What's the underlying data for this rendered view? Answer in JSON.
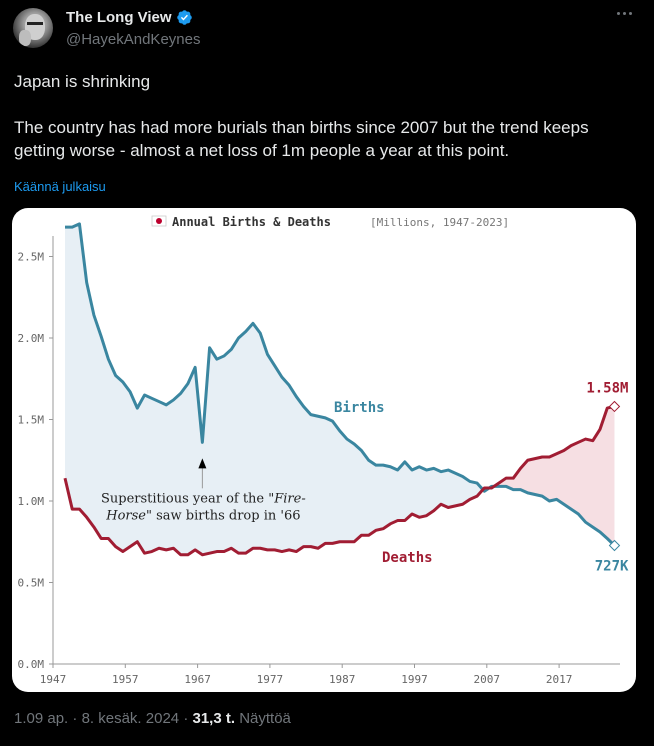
{
  "tweet": {
    "author": {
      "display_name": "The Long View",
      "handle": "@HayekAndKeynes",
      "verified": true,
      "avatar_icon": "avatar-photo"
    },
    "more_icon": "more-horizontal-icon",
    "text": {
      "line1": "Japan is shrinking",
      "line2": "The country has had more burials than births since 2007 but the trend keeps getting worse - almost a net loss of 1m people a year at this point."
    },
    "translate_label": "Käännä julkaisu",
    "footer": {
      "time": "1.09 ap.",
      "sep1": "·",
      "date": "8. kesäk. 2024",
      "sep2": "·",
      "views_count": "31,3 t.",
      "views_label": "Näyttöä"
    }
  },
  "colors": {
    "births": "#3a86a0",
    "deaths": "#a11d33",
    "births_fill": "#e7eff5",
    "deaths_fill": "#f6dfe3",
    "accent": "#1d9bf0"
  },
  "chart_data": {
    "type": "line",
    "title": "Annual Births & Deaths",
    "subtitle": "[Millions, 1947-2023]",
    "title_icon": "japan-flag-icon",
    "xlabel": "",
    "ylabel": "",
    "xlim": [
      1947,
      2023
    ],
    "ylim": [
      0,
      2.7
    ],
    "x_ticks": [
      "1947",
      "1957",
      "1967",
      "1977",
      "1987",
      "1997",
      "2007",
      "2017"
    ],
    "y_ticks": [
      "0.0M",
      "0.5M",
      "1.0M",
      "1.5M",
      "2.0M",
      "2.5M"
    ],
    "y_tick_values": [
      0,
      0.5,
      1.0,
      1.5,
      2.0,
      2.5
    ],
    "x": [
      1947,
      1948,
      1949,
      1950,
      1951,
      1952,
      1953,
      1954,
      1955,
      1956,
      1957,
      1958,
      1959,
      1960,
      1961,
      1962,
      1963,
      1964,
      1965,
      1966,
      1967,
      1968,
      1969,
      1970,
      1971,
      1972,
      1973,
      1974,
      1975,
      1976,
      1977,
      1978,
      1979,
      1980,
      1981,
      1982,
      1983,
      1984,
      1985,
      1986,
      1987,
      1988,
      1989,
      1990,
      1991,
      1992,
      1993,
      1994,
      1995,
      1996,
      1997,
      1998,
      1999,
      2000,
      2001,
      2002,
      2003,
      2004,
      2005,
      2006,
      2007,
      2008,
      2009,
      2010,
      2011,
      2012,
      2013,
      2014,
      2015,
      2016,
      2017,
      2018,
      2019,
      2020,
      2021,
      2022,
      2023
    ],
    "series": [
      {
        "name": "Births",
        "values": [
          2.68,
          2.68,
          2.7,
          2.34,
          2.14,
          2.01,
          1.87,
          1.77,
          1.73,
          1.67,
          1.57,
          1.65,
          1.63,
          1.61,
          1.59,
          1.62,
          1.66,
          1.72,
          1.82,
          1.36,
          1.94,
          1.87,
          1.89,
          1.93,
          2.0,
          2.04,
          2.09,
          2.03,
          1.9,
          1.83,
          1.76,
          1.71,
          1.64,
          1.58,
          1.53,
          1.52,
          1.51,
          1.49,
          1.43,
          1.38,
          1.35,
          1.31,
          1.25,
          1.22,
          1.22,
          1.21,
          1.19,
          1.24,
          1.19,
          1.21,
          1.19,
          1.2,
          1.18,
          1.19,
          1.17,
          1.15,
          1.12,
          1.11,
          1.06,
          1.09,
          1.09,
          1.09,
          1.07,
          1.07,
          1.05,
          1.04,
          1.03,
          1.0,
          1.01,
          0.98,
          0.95,
          0.92,
          0.87,
          0.84,
          0.81,
          0.77,
          0.727
        ]
      },
      {
        "name": "Deaths",
        "values": [
          1.14,
          0.95,
          0.95,
          0.9,
          0.84,
          0.77,
          0.77,
          0.72,
          0.69,
          0.72,
          0.75,
          0.68,
          0.69,
          0.71,
          0.7,
          0.71,
          0.67,
          0.67,
          0.7,
          0.67,
          0.68,
          0.69,
          0.69,
          0.71,
          0.68,
          0.68,
          0.71,
          0.71,
          0.7,
          0.7,
          0.69,
          0.7,
          0.69,
          0.72,
          0.72,
          0.71,
          0.74,
          0.74,
          0.75,
          0.75,
          0.75,
          0.79,
          0.79,
          0.82,
          0.83,
          0.86,
          0.88,
          0.88,
          0.92,
          0.9,
          0.91,
          0.94,
          0.98,
          0.96,
          0.97,
          0.98,
          1.01,
          1.03,
          1.08,
          1.08,
          1.11,
          1.14,
          1.14,
          1.2,
          1.25,
          1.26,
          1.27,
          1.27,
          1.29,
          1.31,
          1.34,
          1.36,
          1.38,
          1.37,
          1.44,
          1.57,
          1.58
        ]
      }
    ],
    "annotations": [
      {
        "text_line1": "Superstitious year of the \"",
        "italic1": "Fire-",
        "italic2": "Horse",
        "text_line2": "\" saw births drop in '66",
        "x": 1966,
        "y": 1.36
      },
      {
        "text": "Births",
        "series": "Births"
      },
      {
        "text": "Deaths",
        "series": "Deaths"
      },
      {
        "text": "1.58M",
        "x": 2023,
        "y": 1.58,
        "series": "Deaths"
      },
      {
        "text": "727K",
        "x": 2023,
        "y": 0.727,
        "series": "Births"
      }
    ],
    "grid": false,
    "legend": "none"
  }
}
